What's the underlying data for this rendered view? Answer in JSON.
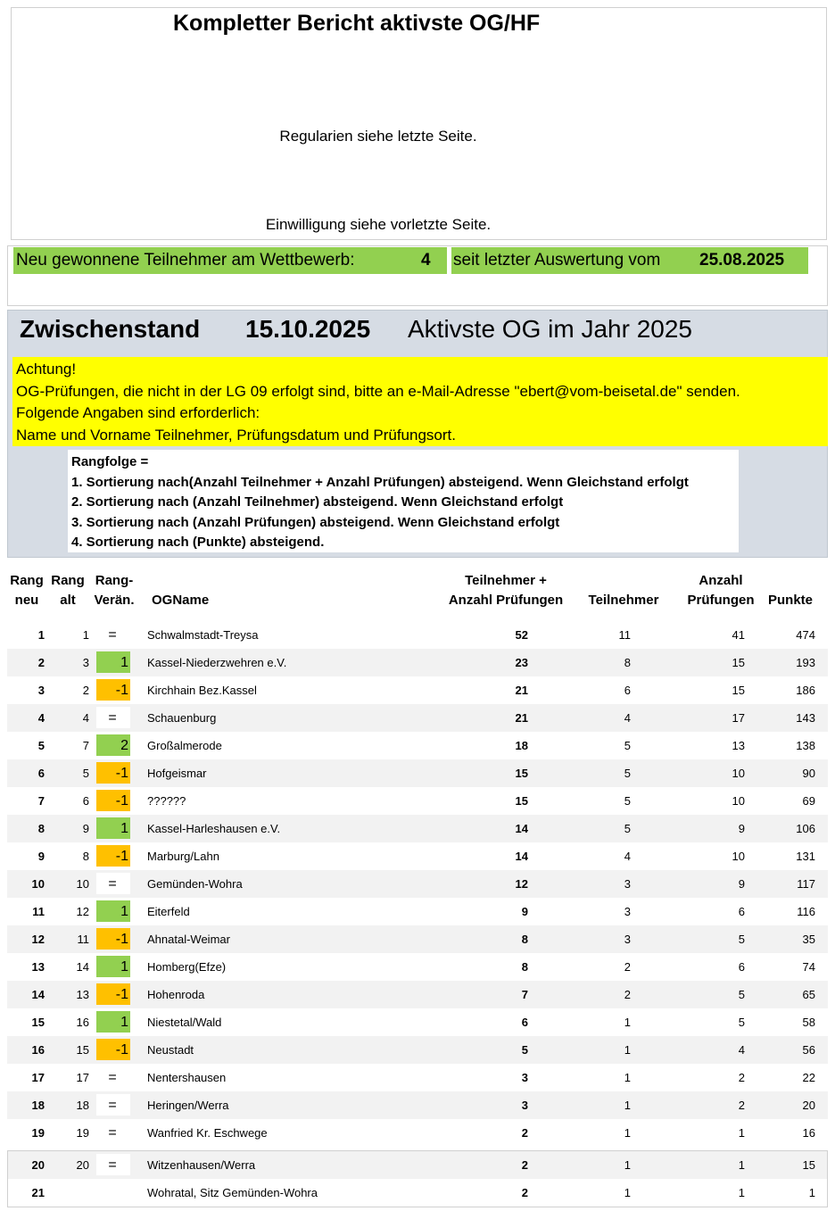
{
  "header": {
    "title": "Kompletter Bericht aktivste OG/HF",
    "regulations": "Regularien siehe letzte Seite.",
    "consent": "Einwilligung siehe vorletzte Seite."
  },
  "new_participants": {
    "label": "Neu gewonnene Teilnehmer am Wettbewerb:",
    "value": 4,
    "since_label": "seit letzter Auswertung vom",
    "since_date": "25.08.2025"
  },
  "standing": {
    "title": "Zwischenstand",
    "date": "15.10.2025",
    "subtitle": "Aktivste OG im Jahr 2025"
  },
  "notice": {
    "lines": [
      "Achtung!",
      "OG-Prüfungen, die nicht in der LG 09 erfolgt sind, bitte an e-Mail-Adresse \"ebert@vom-beisetal.de\" senden.",
      "Folgende Angaben sind erforderlich:",
      "Name und Vorname Teilnehmer, Prüfungsdatum und Prüfungsort."
    ]
  },
  "ranking_rules": {
    "lines": [
      "Rangfolge =",
      "1. Sortierung nach(Anzahl Teilnehmer + Anzahl Prüfungen) absteigend. Wenn Gleichstand erfolgt",
      "2. Sortierung nach (Anzahl Teilnehmer) absteigend. Wenn Gleichstand erfolgt",
      "3. Sortierung nach (Anzahl Prüfungen) absteigend. Wenn Gleichstand erfolgt",
      "4. Sortierung nach (Punkte) absteigend."
    ]
  },
  "table": {
    "columns": [
      [
        "Rang",
        "neu"
      ],
      [
        "Rang",
        "alt"
      ],
      [
        "Rang-",
        "Verän."
      ],
      [
        "OGName"
      ],
      [
        "Teilnehmer +",
        "Anzahl Prüfungen"
      ],
      [
        "Teilnehmer"
      ],
      [
        "Anzahl",
        "Prüfungen"
      ],
      [
        "Punkte"
      ]
    ],
    "rows": [
      [
        1,
        1,
        "=",
        "Schwalmstadt-Treysa",
        52,
        11,
        41,
        474
      ],
      [
        2,
        3,
        1,
        "Kassel-Niederzwehren e.V.",
        23,
        8,
        15,
        193
      ],
      [
        3,
        2,
        -1,
        "Kirchhain Bez.Kassel",
        21,
        6,
        15,
        186
      ],
      [
        4,
        4,
        "=",
        "Schauenburg",
        21,
        4,
        17,
        143
      ],
      [
        5,
        7,
        2,
        "Großalmerode",
        18,
        5,
        13,
        138
      ],
      [
        6,
        5,
        -1,
        "Hofgeismar",
        15,
        5,
        10,
        90
      ],
      [
        7,
        6,
        -1,
        "??????",
        15,
        5,
        10,
        69
      ],
      [
        8,
        9,
        1,
        "Kassel-Harleshausen e.V.",
        14,
        5,
        9,
        106
      ],
      [
        9,
        8,
        -1,
        "Marburg/Lahn",
        14,
        4,
        10,
        131
      ],
      [
        10,
        10,
        "=",
        "Gemünden-Wohra",
        12,
        3,
        9,
        117
      ],
      [
        11,
        12,
        1,
        "Eiterfeld",
        9,
        3,
        6,
        116
      ],
      [
        12,
        11,
        -1,
        "Ahnatal-Weimar",
        8,
        3,
        5,
        35
      ],
      [
        13,
        14,
        1,
        "Homberg(Efze)",
        8,
        2,
        6,
        74
      ],
      [
        14,
        13,
        -1,
        "Hohenroda",
        7,
        2,
        5,
        65
      ],
      [
        15,
        16,
        1,
        "Niestetal/Wald",
        6,
        1,
        5,
        58
      ],
      [
        16,
        15,
        -1,
        "Neustadt",
        5,
        1,
        4,
        56
      ],
      [
        17,
        17,
        "=",
        "Nentershausen",
        3,
        1,
        2,
        22
      ],
      [
        18,
        18,
        "=",
        "Heringen/Werra",
        3,
        1,
        2,
        20
      ],
      [
        19,
        19,
        "=",
        "Wanfried Kr. Eschwege",
        2,
        1,
        1,
        16
      ],
      [
        20,
        20,
        "=",
        "Witzenhausen/Werra",
        2,
        1,
        1,
        15
      ],
      [
        21,
        null,
        null,
        "Wohratal, Sitz Gemünden-Wohra",
        2,
        1,
        1,
        1
      ]
    ]
  }
}
